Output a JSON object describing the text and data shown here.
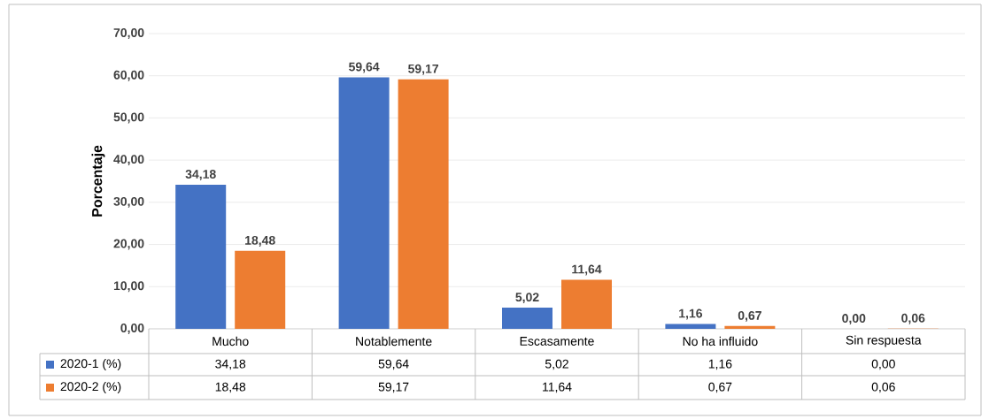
{
  "chart_data": {
    "type": "bar",
    "ylabel": "Porcentaje",
    "categories": [
      "Mucho",
      "Notablemente",
      "Escasamente",
      "No ha influido",
      "Sin respuesta"
    ],
    "series": [
      {
        "name": "2020-1 (%)",
        "color": "#4472c4",
        "values": [
          34.18,
          59.64,
          5.02,
          1.16,
          0.0
        ],
        "value_labels": [
          "34,18",
          "59,64",
          "5,02",
          "1,16",
          "0,00"
        ]
      },
      {
        "name": "2020-2 (%)",
        "color": "#ed7d31",
        "values": [
          18.48,
          59.17,
          11.64,
          0.67,
          0.06
        ],
        "value_labels": [
          "18,48",
          "59,17",
          "11,64",
          "0,67",
          "0,06"
        ]
      }
    ],
    "ylim": [
      0,
      70
    ],
    "yticks": [
      {
        "value": 0,
        "label": "0,00"
      },
      {
        "value": 10,
        "label": "10,00"
      },
      {
        "value": 20,
        "label": "20,00"
      },
      {
        "value": 30,
        "label": "30,00"
      },
      {
        "value": 40,
        "label": "40,00"
      },
      {
        "value": 50,
        "label": "50,00"
      },
      {
        "value": 60,
        "label": "60,00"
      },
      {
        "value": 70,
        "label": "70,00"
      }
    ],
    "grid": "y",
    "legend": "bottom left"
  }
}
